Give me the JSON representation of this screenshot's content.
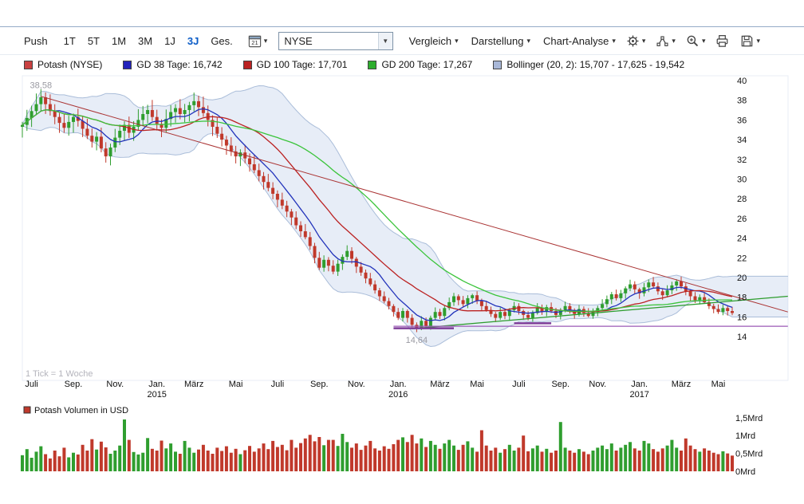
{
  "icons": {
    "chevron_down": "▾",
    "select_arrow": "▼"
  },
  "toolbar": {
    "push_label": "Push",
    "ranges": [
      "1T",
      "5T",
      "1M",
      "3M",
      "1J",
      "3J",
      "Ges."
    ],
    "active_range": "3J",
    "calendar_value": "21",
    "exchange": "NYSE",
    "menu_vergleich": "Vergleich",
    "menu_darstellung": "Darstellung",
    "menu_chartanalyse": "Chart-Analyse"
  },
  "legend": [
    {
      "label": "Potash (NYSE)",
      "color": "#c94141"
    },
    {
      "label": "GD 38 Tage: 16,742",
      "color": "#2222bb"
    },
    {
      "label": "GD 100 Tage: 17,701",
      "color": "#bb2222"
    },
    {
      "label": "GD 200 Tage: 17,267",
      "color": "#2fae2f"
    },
    {
      "label": "Bollinger (20, 2): 15,707 - 17,625 - 19,542",
      "color": "#a9b8d8"
    }
  ],
  "chart_data": {
    "type": "candlestick",
    "title": "Potash (NYSE)",
    "timeframe": "3J",
    "frequency": "weekly",
    "tick_note": "1 Tick = 1 Woche",
    "open_rule": "previous_close",
    "wick_pct": 0.022,
    "candle_up_color": "#2f9e2f",
    "candle_down_color": "#c0392b",
    "y_ticks": [
      40,
      38,
      36,
      34,
      32,
      30,
      28,
      26,
      24,
      22,
      20,
      18,
      16,
      14
    ],
    "y_axis_range": [
      13.3,
      40.6
    ],
    "x_ticks": [
      {
        "week": 2,
        "label": "Juli"
      },
      {
        "week": 11,
        "label": "Sep."
      },
      {
        "week": 20,
        "label": "Nov."
      },
      {
        "week": 29,
        "label": "Jan.",
        "year": "2015"
      },
      {
        "week": 37,
        "label": "März"
      },
      {
        "week": 46,
        "label": "Mai"
      },
      {
        "week": 55,
        "label": "Juli"
      },
      {
        "week": 64,
        "label": "Sep."
      },
      {
        "week": 72,
        "label": "Nov."
      },
      {
        "week": 81,
        "label": "Jan.",
        "year": "2016"
      },
      {
        "week": 90,
        "label": "März"
      },
      {
        "week": 98,
        "label": "Mai"
      },
      {
        "week": 107,
        "label": "Juli"
      },
      {
        "week": 116,
        "label": "Sep."
      },
      {
        "week": 124,
        "label": "Nov."
      },
      {
        "week": 133,
        "label": "Jan.",
        "year": "2017"
      },
      {
        "week": 142,
        "label": "März"
      },
      {
        "week": 150,
        "label": "Mai"
      }
    ],
    "annotations": [
      {
        "week": 4,
        "price": 38.58,
        "label": "38,58",
        "dy": -8
      },
      {
        "week": 85,
        "price": 14.64,
        "label": "14,64",
        "dy": 16
      }
    ],
    "closes": [
      35.5,
      36.2,
      36.9,
      37.6,
      38.3,
      37.6,
      36.9,
      36.3,
      35.7,
      35.2,
      35.8,
      36.3,
      35.9,
      35.1,
      34.4,
      33.8,
      34.3,
      33.1,
      32.3,
      33.2,
      34.2,
      34.9,
      35.5,
      34.7,
      35.3,
      36.0,
      36.6,
      37.0,
      36.3,
      35.6,
      35.2,
      36.1,
      36.8,
      37.2,
      36.6,
      37.0,
      37.5,
      37.9,
      37.3,
      36.7,
      36.0,
      35.3,
      34.6,
      34.0,
      33.4,
      32.8,
      32.3,
      32.7,
      32.1,
      31.5,
      30.9,
      30.3,
      29.7,
      29.1,
      28.5,
      27.9,
      27.3,
      26.7,
      26.1,
      25.3,
      24.7,
      24.1,
      23.2,
      22.0,
      21.0,
      21.8,
      21.2,
      20.6,
      21.4,
      22.1,
      22.7,
      21.9,
      21.1,
      20.5,
      19.9,
      19.3,
      18.7,
      18.1,
      17.6,
      17.1,
      16.5,
      15.9,
      16.6,
      15.9,
      15.2,
      14.8,
      15.6,
      15.1,
      15.9,
      16.5,
      16.1,
      16.9,
      17.5,
      18.1,
      17.7,
      17.3,
      17.9,
      18.2,
      17.6,
      17.1,
      16.7,
      16.3,
      15.9,
      16.5,
      16.1,
      16.7,
      17.1,
      16.6,
      16.2,
      15.9,
      16.4,
      16.9,
      16.5,
      17.0,
      16.6,
      16.2,
      16.7,
      17.1,
      16.7,
      16.3,
      16.8,
      16.4,
      16.1,
      16.5,
      16.9,
      17.3,
      17.8,
      18.3,
      17.9,
      18.4,
      18.9,
      19.3,
      18.8,
      18.4,
      19.0,
      19.5,
      19.1,
      18.6,
      18.2,
      18.7,
      19.2,
      19.6,
      19.1,
      18.6,
      18.1,
      17.7,
      18.0,
      17.5,
      17.1,
      16.8,
      16.5,
      16.9,
      16.6,
      16.4
    ],
    "volumes": [
      0.45,
      0.62,
      0.38,
      0.55,
      0.7,
      0.48,
      0.36,
      0.58,
      0.42,
      0.66,
      0.39,
      0.52,
      0.47,
      0.74,
      0.58,
      0.9,
      0.61,
      0.83,
      0.67,
      0.49,
      0.58,
      0.72,
      1.45,
      0.88,
      0.54,
      0.47,
      0.52,
      0.93,
      0.63,
      0.58,
      0.86,
      0.64,
      0.78,
      0.55,
      0.49,
      0.85,
      0.66,
      0.52,
      0.61,
      0.74,
      0.58,
      0.49,
      0.66,
      0.57,
      0.7,
      0.52,
      0.63,
      0.48,
      0.59,
      0.71,
      0.55,
      0.64,
      0.78,
      0.62,
      0.85,
      0.68,
      0.74,
      0.59,
      0.88,
      0.66,
      0.79,
      0.92,
      1.02,
      0.84,
      0.96,
      0.73,
      0.88,
      0.88,
      0.71,
      1.05,
      0.82,
      0.66,
      0.78,
      0.6,
      0.72,
      0.85,
      0.64,
      0.58,
      0.7,
      0.63,
      0.76,
      0.88,
      0.95,
      0.82,
      1.02,
      0.78,
      0.92,
      0.68,
      0.85,
      0.74,
      0.63,
      0.78,
      0.88,
      0.72,
      0.6,
      0.74,
      0.84,
      0.66,
      0.55,
      1.15,
      0.72,
      0.58,
      0.66,
      0.52,
      0.62,
      0.74,
      0.58,
      0.66,
      1.0,
      0.56,
      0.64,
      0.72,
      0.55,
      0.63,
      0.52,
      0.58,
      1.38,
      0.66,
      0.58,
      0.52,
      0.62,
      0.55,
      0.48,
      0.58,
      0.66,
      0.72,
      0.62,
      0.78,
      0.58,
      0.66,
      0.74,
      0.82,
      0.64,
      0.58,
      0.85,
      0.78,
      0.62,
      0.55,
      0.64,
      0.72,
      0.88,
      0.66,
      0.58,
      0.92,
      0.72,
      0.62,
      0.55,
      0.64,
      0.58,
      0.52,
      0.48,
      0.56,
      0.5,
      0.44
    ],
    "moving_averages": [
      {
        "name": "GD 38 Tage",
        "weeks": 8,
        "color": "#2233bb",
        "last_value": "16,742"
      },
      {
        "name": "GD 100 Tage",
        "weeks": 20,
        "color": "#bb2222",
        "last_value": "17,701"
      },
      {
        "name": "GD 200 Tage",
        "weeks": 40,
        "color": "#3bc43b",
        "last_value": "17,267"
      }
    ],
    "bollinger": {
      "window": 20,
      "mult": 2,
      "label": "Bollinger (20, 2)",
      "values": "15,707 - 17,625 - 19,542",
      "fill": "rgba(170,190,225,0.28)",
      "edge": "#aabdd9"
    },
    "trendlines": [
      {
        "color": "#aa3333",
        "w1": 4,
        "p1": 38.4,
        "w2": 165,
        "p2": 16.5,
        "width": 1
      },
      {
        "color": "#2d9c2d",
        "w1": 84,
        "p1": 14.8,
        "w2": 165,
        "p2": 18.1,
        "width": 1.3
      }
    ],
    "support_lines": [
      {
        "color": "#7d3c98",
        "price": 14.85,
        "w1": 80,
        "w2": 93,
        "width": 2.5
      },
      {
        "color": "#7d3c98",
        "price": 15.35,
        "w1": 106,
        "w2": 114,
        "width": 2.5
      },
      {
        "color": "#9b59b6",
        "price": 15.05,
        "w1": 80,
        "w2": 165,
        "width": 1.2
      }
    ],
    "volume_axis": [
      {
        "v": 1.5,
        "label": "1,5Mrd"
      },
      {
        "v": 1.0,
        "label": "1Mrd"
      },
      {
        "v": 0.5,
        "label": "0,5Mrd"
      },
      {
        "v": 0.0,
        "label": "0Mrd"
      }
    ],
    "volume_legend": "Potash Volumen in USD",
    "volume_legend_color": "#c0392b"
  }
}
